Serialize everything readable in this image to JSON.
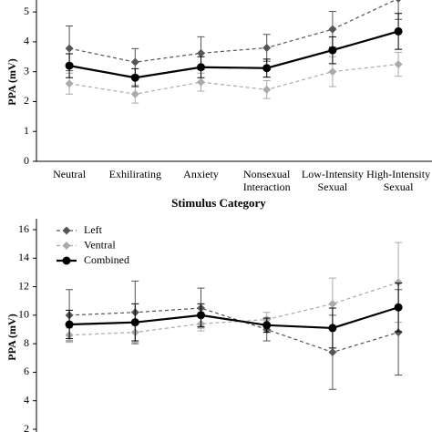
{
  "chart_data": [
    {
      "type": "line",
      "ylabel": "PPA (mV)",
      "xlabel": "Stimulus Category",
      "categories": [
        "Neutral",
        "Exhilirating",
        "Anxiety",
        "Nonsexual Interaction",
        "Low-Intensity Sexual",
        "High-Intensity Sexual"
      ],
      "ylim": [
        0,
        5.4
      ],
      "yticks": [
        0,
        1,
        2,
        3,
        4,
        5
      ],
      "series": [
        {
          "name": "Left",
          "color": "#555555",
          "dash": true,
          "marker": "diamond",
          "values": [
            3.78,
            3.32,
            3.62,
            3.8,
            4.42,
            5.45
          ],
          "errors": [
            0.75,
            0.45,
            0.55,
            0.45,
            0.6,
            0.7
          ]
        },
        {
          "name": "Ventral",
          "color": "#aaaaaa",
          "dash": true,
          "marker": "diamond",
          "values": [
            2.6,
            2.25,
            2.65,
            2.4,
            3.0,
            3.25
          ],
          "errors": [
            0.35,
            0.3,
            0.3,
            0.3,
            0.5,
            0.4
          ]
        },
        {
          "name": "Combined",
          "color": "#000000",
          "dash": false,
          "marker": "circle",
          "values": [
            3.2,
            2.8,
            3.15,
            3.12,
            3.72,
            4.35
          ],
          "errors": [
            0.4,
            0.3,
            0.35,
            0.3,
            0.45,
            0.6
          ]
        }
      ]
    },
    {
      "type": "line",
      "ylabel": "PPA (mV)",
      "legend": "upper left",
      "ylim": [
        2,
        16
      ],
      "yticks": [
        2,
        4,
        6,
        8,
        10,
        12,
        14,
        16
      ],
      "series": [
        {
          "name": "Left",
          "color": "#555555",
          "dash": true,
          "marker": "diamond",
          "values": [
            10.0,
            10.2,
            10.5,
            9.0,
            7.4,
            8.8
          ],
          "errors": [
            1.8,
            2.2,
            1.4,
            0.8,
            2.6,
            3.0
          ]
        },
        {
          "name": "Ventral",
          "color": "#aaaaaa",
          "dash": true,
          "marker": "diamond",
          "values": [
            8.6,
            8.8,
            9.4,
            9.7,
            10.8,
            12.3
          ],
          "errors": [
            0.5,
            0.7,
            0.5,
            0.5,
            1.8,
            2.8
          ]
        },
        {
          "name": "Combined",
          "color": "#000000",
          "dash": false,
          "marker": "circle",
          "values": [
            9.35,
            9.5,
            10.0,
            9.3,
            9.1,
            10.55
          ],
          "errors": [
            1.0,
            1.3,
            0.8,
            0.5,
            1.4,
            1.7
          ]
        }
      ]
    }
  ]
}
